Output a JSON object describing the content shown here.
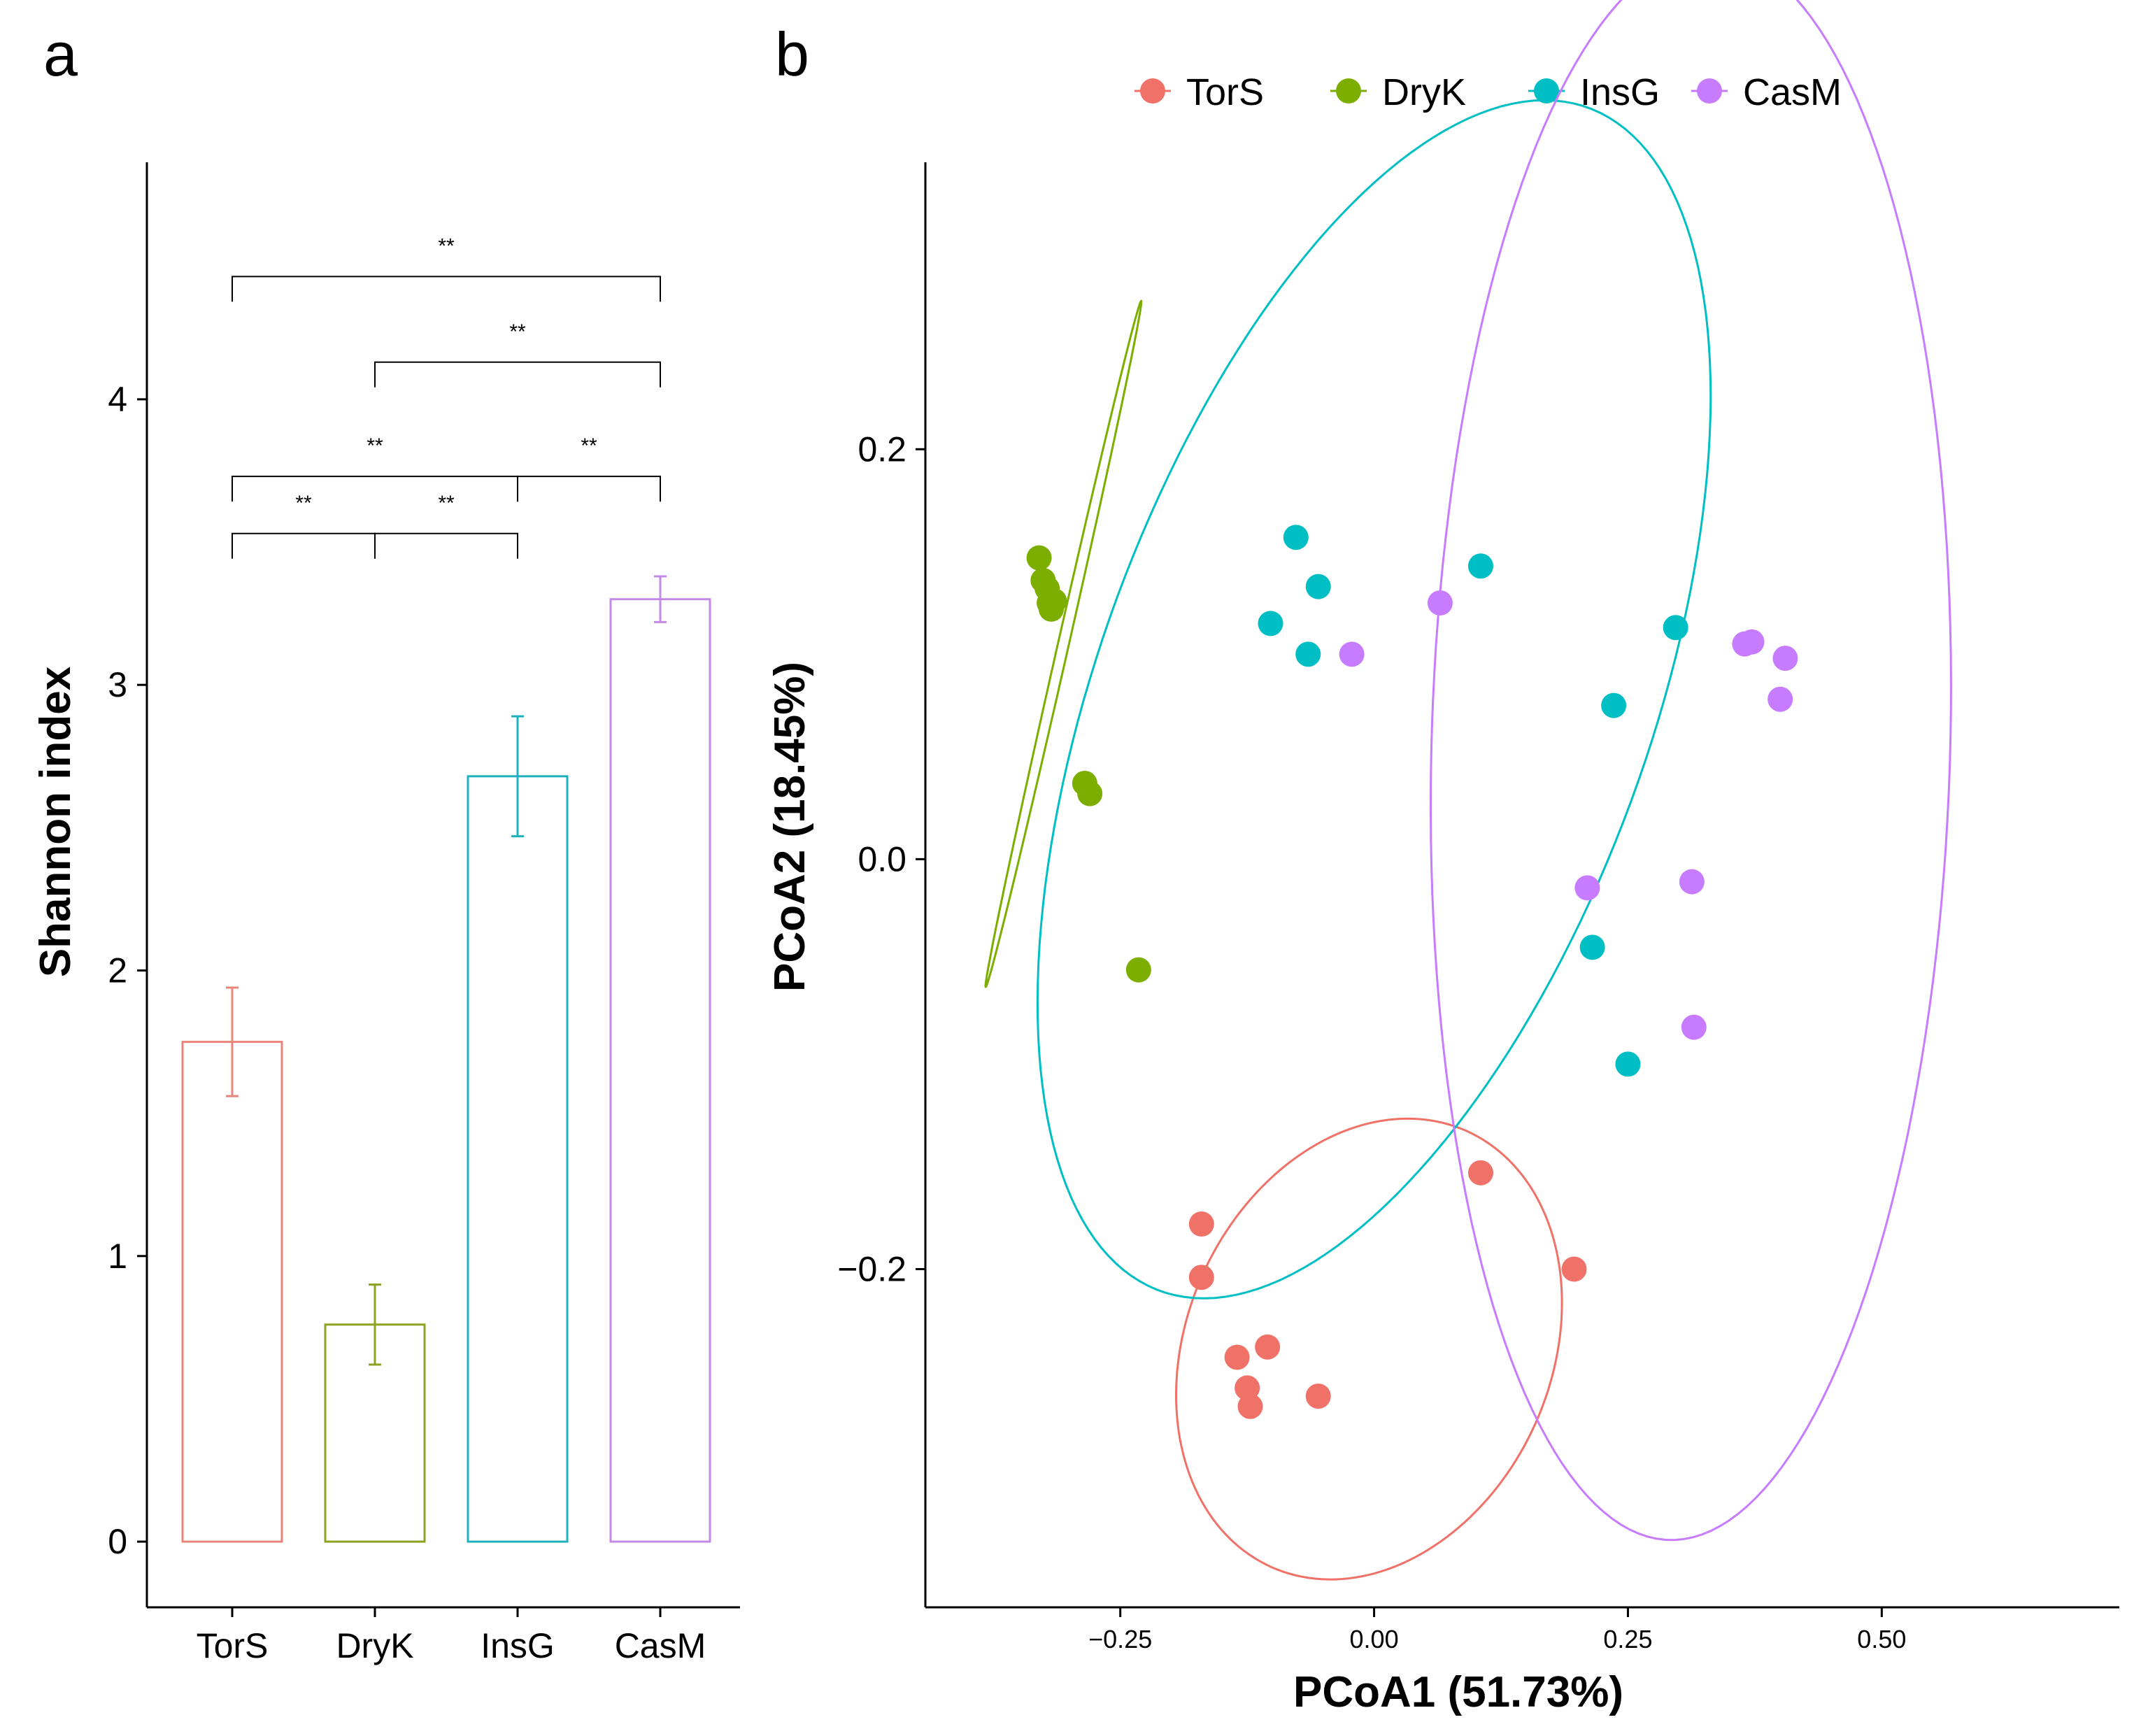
{
  "panel_labels": {
    "a": "a",
    "b": "b"
  },
  "chart_data": [
    {
      "type": "bar",
      "panel": "a",
      "title": "",
      "xlabel": "",
      "ylabel": "Shannon index",
      "ylim": [
        -0.23,
        4.83
      ],
      "yticks": [
        0,
        1,
        2,
        3,
        4
      ],
      "categories": [
        "TorS",
        "DryK",
        "InsG",
        "CasM"
      ],
      "values": [
        1.75,
        0.76,
        2.68,
        3.3
      ],
      "error": [
        0.19,
        0.14,
        0.21,
        0.08
      ],
      "colors": [
        "#E8857A",
        "#8AA320",
        "#1FB2BE",
        "#C58AE8"
      ],
      "significance": [
        {
          "from": 0,
          "to": 3,
          "label": "**",
          "y": 4.43
        },
        {
          "from": 1,
          "to": 3,
          "label": "**",
          "y": 4.13
        },
        {
          "from": 0,
          "to": 2,
          "label": "**",
          "y": 3.73
        },
        {
          "from": 2,
          "to": 3,
          "label": "**",
          "y": 3.73
        },
        {
          "from": 0,
          "to": 1,
          "label": "**",
          "y": 3.53
        },
        {
          "from": 1,
          "to": 2,
          "label": "**",
          "y": 3.53
        }
      ]
    },
    {
      "type": "scatter",
      "panel": "b",
      "title": "",
      "xlabel": "PCoA1 (51.73%)",
      "ylabel": "PCoA2 (18.45%)",
      "xlim": [
        -0.442,
        0.734
      ],
      "ylim": [
        -0.365,
        0.34
      ],
      "xticks": [
        -0.25,
        0.0,
        0.25,
        0.5
      ],
      "xtick_labels": [
        "−0.25",
        "0.00",
        "0.25",
        "0.50"
      ],
      "yticks": [
        -0.2,
        0.0,
        0.2
      ],
      "ytick_labels": [
        "−0.2",
        "0.0",
        "0.2"
      ],
      "legend_position": "top",
      "series": [
        {
          "name": "TorS",
          "color": "#F07167",
          "x": [
            -0.17,
            -0.17,
            0.105,
            0.197,
            -0.135,
            -0.105,
            -0.125,
            -0.122,
            -0.055
          ],
          "y": [
            -0.178,
            -0.204,
            -0.153,
            -0.2,
            -0.243,
            -0.238,
            -0.258,
            -0.267,
            -0.262
          ],
          "ellipse": {
            "cx": -0.005,
            "cy": -0.239,
            "rx": 0.192,
            "ry": 0.109,
            "angle_deg": 10
          }
        },
        {
          "name": "DryK",
          "color": "#7CAE00",
          "x": [
            -0.33,
            -0.326,
            -0.322,
            -0.32,
            -0.318,
            -0.315,
            -0.285,
            -0.28,
            -0.232
          ],
          "y": [
            0.147,
            0.136,
            0.132,
            0.125,
            0.122,
            0.126,
            0.037,
            0.032,
            -0.054
          ],
          "ellipse": {
            "cx": -0.306,
            "cy": 0.105,
            "rx": 0.184,
            "ry": 0.005,
            "angle_deg": 65.4
          }
        },
        {
          "name": "InsG",
          "color": "#00BFC4",
          "x": [
            -0.077,
            -0.055,
            -0.102,
            -0.065,
            0.105,
            0.297,
            0.236,
            0.215,
            0.25
          ],
          "y": [
            0.157,
            0.133,
            0.115,
            0.1,
            0.143,
            0.113,
            0.075,
            -0.043,
            -0.1
          ],
          "ellipse": {
            "cx": 0.0,
            "cy": 0.078,
            "rx": 0.385,
            "ry": 0.217,
            "angle_deg": 38
          }
        },
        {
          "name": "CasM",
          "color": "#C77CFF",
          "x": [
            -0.022,
            0.065,
            0.365,
            0.372,
            0.405,
            0.4,
            0.21,
            0.313,
            0.315
          ],
          "y": [
            0.1,
            0.125,
            0.105,
            0.106,
            0.098,
            0.078,
            -0.014,
            -0.011,
            -0.082
          ],
          "ellipse": {
            "cx": 0.312,
            "cy": 0.055,
            "rx": 0.388,
            "ry": 0.255,
            "angle_deg": 85
          }
        }
      ]
    }
  ]
}
